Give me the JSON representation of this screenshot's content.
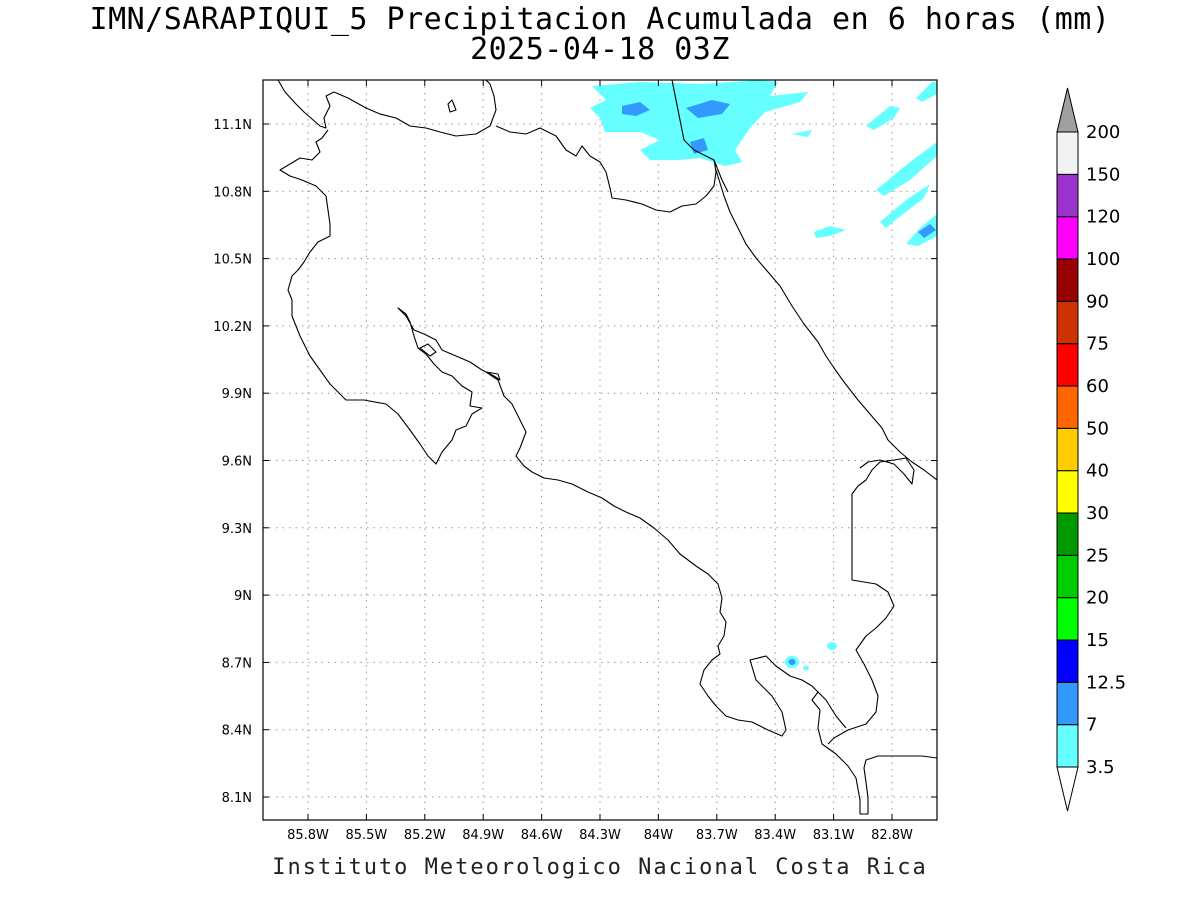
{
  "header": {
    "title": "IMN/SARAPIQUI_5 Precipitacion Acumulada en 6 horas (mm)",
    "subtitle": "2025-04-18 03Z"
  },
  "footer": {
    "credit": "Instituto Meteorologico Nacional Costa Rica"
  },
  "axes": {
    "lon_ticks": [
      "85.8W",
      "85.5W",
      "85.2W",
      "84.9W",
      "84.6W",
      "84.3W",
      "84W",
      "83.7W",
      "83.4W",
      "83.1W",
      "82.8W"
    ],
    "lat_ticks": [
      "11.1N",
      "10.8N",
      "10.5N",
      "10.2N",
      "9.9N",
      "9.6N",
      "9.3N",
      "9N",
      "8.7N",
      "8.4N",
      "8.1N"
    ]
  },
  "colorbar": {
    "levels": [
      "3.5",
      "7",
      "12.5",
      "15",
      "20",
      "25",
      "30",
      "40",
      "50",
      "60",
      "75",
      "90",
      "100",
      "120",
      "150",
      "200"
    ],
    "colors": [
      "#66ffff",
      "#3399ff",
      "#0000ff",
      "#00ff00",
      "#00cc00",
      "#009900",
      "#ffff00",
      "#ffcc00",
      "#ff6600",
      "#ff0000",
      "#cc3300",
      "#990000",
      "#ff00ff",
      "#9933cc",
      "#f2f2f2"
    ],
    "over_color": "#a0a0a0",
    "under_color": "#ffffff"
  },
  "precip_colors": {
    "light": "#66ffff",
    "moderate": "#3399ff"
  }
}
